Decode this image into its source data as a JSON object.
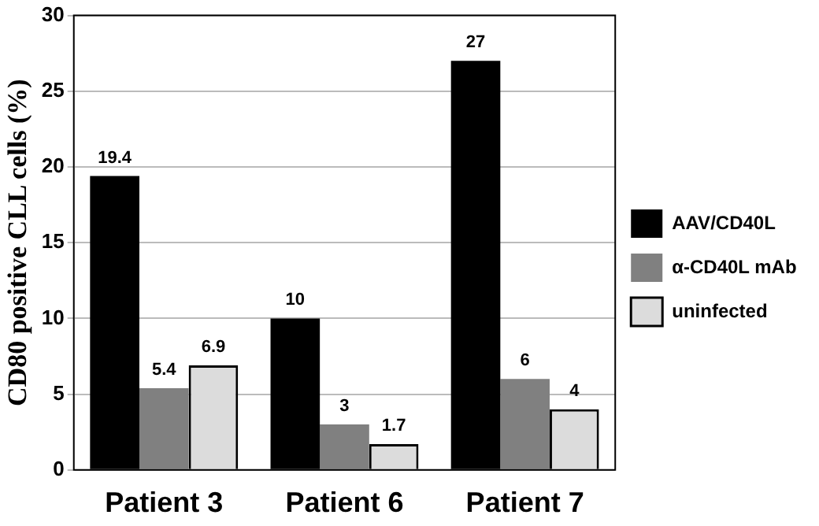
{
  "chart_data": {
    "type": "bar",
    "ylabel": "CD80 positive CLL cells (%)",
    "categories": [
      "Patient 3",
      "Patient 6",
      "Patient 7"
    ],
    "series": [
      {
        "name": "AAV/CD40L",
        "color": "#000000",
        "values": [
          19.4,
          10,
          27
        ]
      },
      {
        "name": "α-CD40L mAb",
        "color": "#808080",
        "values": [
          5.4,
          3,
          6
        ]
      },
      {
        "name": "uninfected",
        "color": "#dcdcdc",
        "values": [
          6.9,
          1.7,
          4
        ]
      }
    ],
    "ylim": [
      0,
      30
    ],
    "yticks": [
      0,
      5,
      10,
      15,
      20,
      25,
      30
    ],
    "grid": "y",
    "legend": "right",
    "data_labels": true
  }
}
